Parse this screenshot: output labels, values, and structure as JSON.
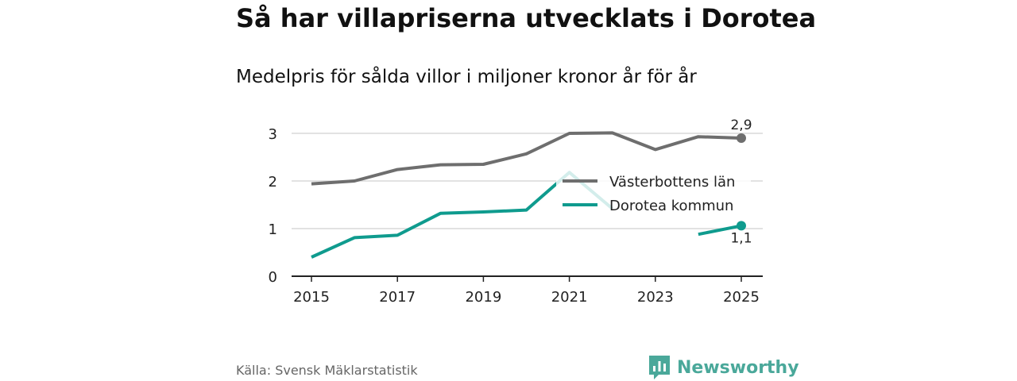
{
  "header": {
    "title": "Så har villapriserna utvecklats i Dorotea",
    "subtitle": "Medelpris för sålda villor i miljoner kronor år för år"
  },
  "footer": {
    "source": "Källa: Svensk Mäklarstatistik",
    "brand": "Newsworthy",
    "brand_icon": "bar-chart-logo-icon",
    "brand_color": "#4aa89a"
  },
  "chart_data": {
    "type": "line",
    "title": "Så har villapriserna utvecklats i Dorotea",
    "subtitle": "Medelpris för sålda villor i miljoner kronor år för år",
    "xlabel": "",
    "ylabel": "",
    "x": [
      2015,
      2016,
      2017,
      2018,
      2019,
      2020,
      2021,
      2022,
      2023,
      2024,
      2025
    ],
    "xticks": [
      "2015",
      "2017",
      "2019",
      "2021",
      "2023",
      "2025"
    ],
    "yticks": [
      "0",
      "1",
      "2",
      "3"
    ],
    "ylim": [
      0,
      3.3
    ],
    "grid": true,
    "legend_position": "center-right",
    "series": [
      {
        "name": "Västerbottens län",
        "color": "#6e6e6e",
        "values": [
          1.94,
          2.0,
          2.24,
          2.34,
          2.35,
          2.57,
          3.0,
          3.01,
          2.66,
          2.93,
          2.9
        ],
        "end_label": "2,9"
      },
      {
        "name": "Dorotea kommun",
        "color": "#0f9b8e",
        "values": [
          0.4,
          0.81,
          0.86,
          1.32,
          1.35,
          1.39,
          2.18,
          1.42,
          null,
          0.88,
          1.06
        ],
        "end_label": "1,1"
      }
    ]
  }
}
